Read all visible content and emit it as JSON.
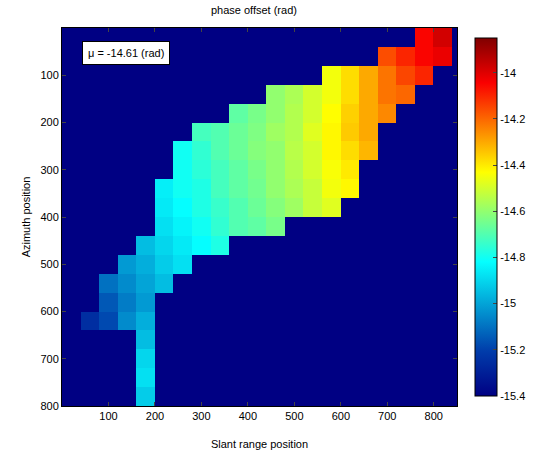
{
  "chart_data": {
    "type": "heatmap",
    "title": "phase offset (rad)",
    "x_label": "Slant range position",
    "y_label": "Azimuth position",
    "annotations": [
      "μ = -14.61 (rad)"
    ],
    "color": "Jet",
    "xlim": [
      0,
      850
    ],
    "xticks": [
      100,
      200,
      300,
      400,
      500,
      600,
      700,
      800
    ],
    "ylim": [
      800,
      0
    ],
    "yticks": [
      100,
      200,
      300,
      400,
      500,
      600,
      700,
      800
    ],
    "colorbar": {
      "range": [
        -15.4,
        -13.85
      ],
      "ticks": [
        -15.4,
        -15.2,
        -15,
        -14.8,
        -14.6,
        -14.4,
        -14.2,
        -14
      ]
    },
    "x": [
      20,
      60,
      100,
      140,
      180,
      220,
      260,
      300,
      340,
      380,
      420,
      460,
      500,
      540,
      580,
      620,
      660,
      700,
      740,
      780,
      820
    ],
    "y": [
      20,
      60,
      100,
      140,
      180,
      220,
      260,
      300,
      340,
      380,
      420,
      460,
      500,
      540,
      580,
      620,
      660,
      700,
      740,
      780
    ],
    "cells": [
      [
        null,
        null,
        null,
        null,
        null,
        null,
        null,
        null,
        null,
        null,
        null,
        null,
        null,
        null,
        null,
        null,
        null,
        null,
        null,
        -14.05,
        -13.98
      ],
      [
        null,
        null,
        null,
        null,
        null,
        null,
        null,
        null,
        null,
        null,
        null,
        null,
        null,
        null,
        null,
        null,
        null,
        -14.16,
        -14.1,
        -14.05,
        -14.02
      ],
      [
        null,
        null,
        null,
        null,
        null,
        null,
        null,
        null,
        null,
        null,
        null,
        null,
        null,
        null,
        -14.45,
        -14.38,
        -14.3,
        -14.22,
        -14.15,
        -14.1,
        null
      ],
      [
        null,
        null,
        null,
        null,
        null,
        null,
        null,
        null,
        null,
        null,
        null,
        -14.6,
        -14.56,
        -14.5,
        -14.45,
        -14.38,
        -14.3,
        -14.22,
        -14.2,
        null,
        null
      ],
      [
        null,
        null,
        null,
        null,
        null,
        null,
        null,
        null,
        null,
        -14.68,
        -14.64,
        -14.6,
        -14.55,
        -14.5,
        -14.43,
        -14.36,
        -14.3,
        -14.25,
        null,
        null,
        null
      ],
      [
        null,
        null,
        null,
        null,
        null,
        null,
        null,
        -14.72,
        -14.7,
        -14.66,
        -14.63,
        -14.58,
        -14.55,
        -14.48,
        -14.42,
        -14.35,
        -14.3,
        null,
        null,
        null,
        null
      ],
      [
        null,
        null,
        null,
        null,
        null,
        null,
        -14.8,
        -14.75,
        -14.7,
        -14.66,
        -14.62,
        -14.6,
        -14.54,
        -14.5,
        -14.42,
        -14.38,
        -14.32,
        null,
        null,
        null,
        null
      ],
      [
        null,
        null,
        null,
        null,
        null,
        null,
        -14.8,
        -14.76,
        -14.72,
        -14.68,
        -14.64,
        -14.6,
        -14.55,
        -14.5,
        -14.44,
        -14.4,
        null,
        null,
        null,
        null,
        null
      ],
      [
        null,
        null,
        null,
        null,
        null,
        -14.85,
        -14.8,
        -14.78,
        -14.72,
        -14.68,
        -14.65,
        -14.6,
        -14.56,
        -14.52,
        -14.45,
        -14.42,
        null,
        null,
        null,
        null,
        null
      ],
      [
        null,
        null,
        null,
        null,
        null,
        -14.86,
        -14.82,
        -14.78,
        -14.74,
        -14.7,
        -14.66,
        -14.62,
        -14.58,
        -14.52,
        -14.48,
        null,
        null,
        null,
        null,
        null,
        null
      ],
      [
        null,
        null,
        null,
        null,
        null,
        -14.88,
        -14.84,
        -14.8,
        -14.75,
        -14.7,
        -14.68,
        -14.64,
        null,
        null,
        null,
        null,
        null,
        null,
        null,
        null,
        null
      ],
      [
        null,
        null,
        null,
        null,
        -14.95,
        -14.9,
        -14.86,
        -14.82,
        -14.78,
        null,
        null,
        null,
        null,
        null,
        null,
        null,
        null,
        null,
        null,
        null,
        null
      ],
      [
        null,
        null,
        null,
        -15.02,
        -14.98,
        -14.92,
        -14.88,
        null,
        null,
        null,
        null,
        null,
        null,
        null,
        null,
        null,
        null,
        null,
        null,
        null,
        null
      ],
      [
        null,
        null,
        -15.1,
        -15.05,
        -15.0,
        -14.95,
        null,
        null,
        null,
        null,
        null,
        null,
        null,
        null,
        null,
        null,
        null,
        null,
        null,
        null,
        null
      ],
      [
        null,
        null,
        -15.15,
        -15.08,
        -15.02,
        null,
        null,
        null,
        null,
        null,
        null,
        null,
        null,
        null,
        null,
        null,
        null,
        null,
        null,
        null,
        null
      ],
      [
        null,
        -15.25,
        -15.18,
        -15.05,
        -14.98,
        null,
        null,
        null,
        null,
        null,
        null,
        null,
        null,
        null,
        null,
        null,
        null,
        null,
        null,
        null,
        null
      ],
      [
        null,
        null,
        null,
        null,
        -14.95,
        null,
        null,
        null,
        null,
        null,
        null,
        null,
        null,
        null,
        null,
        null,
        null,
        null,
        null,
        null,
        null
      ],
      [
        null,
        null,
        null,
        null,
        -14.9,
        null,
        null,
        null,
        null,
        null,
        null,
        null,
        null,
        null,
        null,
        null,
        null,
        null,
        null,
        null,
        null
      ],
      [
        null,
        null,
        null,
        null,
        -14.88,
        null,
        null,
        null,
        null,
        null,
        null,
        null,
        null,
        null,
        null,
        null,
        null,
        null,
        null,
        null,
        null
      ],
      [
        null,
        null,
        null,
        null,
        -14.92,
        null,
        null,
        null,
        null,
        null,
        null,
        null,
        null,
        null,
        null,
        null,
        null,
        null,
        null,
        null,
        null
      ]
    ]
  }
}
